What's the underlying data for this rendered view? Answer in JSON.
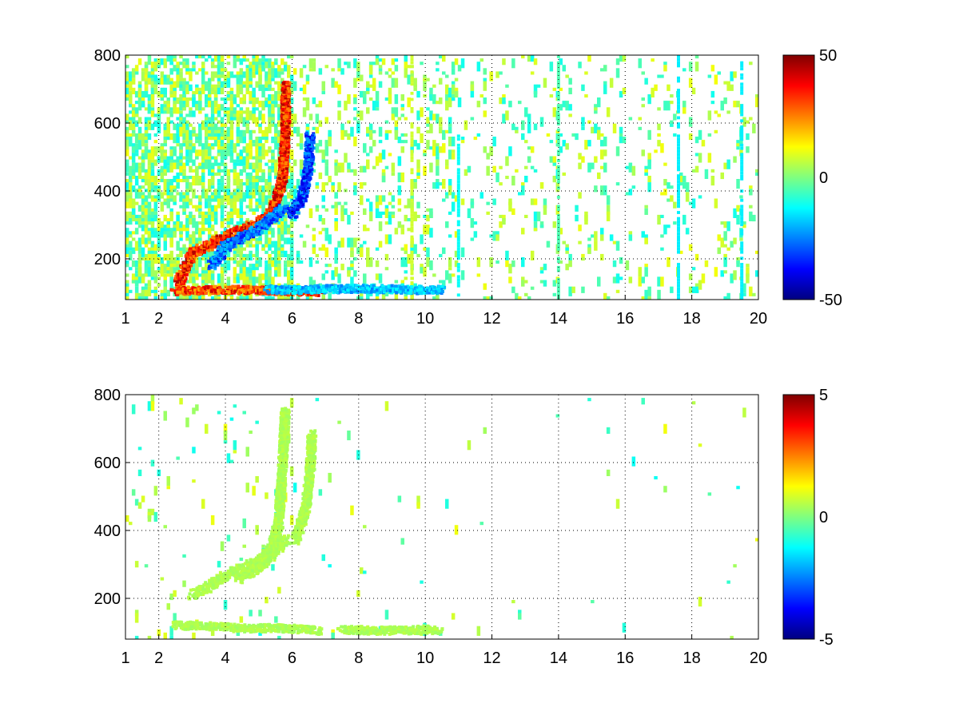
{
  "chart_data": [
    {
      "type": "heatmap",
      "title": "",
      "xlabel": "",
      "ylabel": "",
      "xlim": [
        1,
        20
      ],
      "ylim": [
        80,
        800
      ],
      "x_ticks": [
        "1",
        "2",
        "4",
        "6",
        "8",
        "10",
        "12",
        "14",
        "16",
        "18",
        "20"
      ],
      "y_ticks": [
        "200",
        "400",
        "600",
        "800"
      ],
      "grid": true,
      "colormap": "jet",
      "colorbar": {
        "min": -50,
        "max": 50,
        "ticks": [
          "50",
          "0",
          "-50"
        ]
      },
      "features": [
        {
          "kind": "ridge",
          "value": 45,
          "points": [
            [
              2.6,
              130
            ],
            [
              3.0,
              215
            ],
            [
              3.5,
              240
            ],
            [
              4.0,
              262
            ],
            [
              4.5,
              285
            ],
            [
              5.0,
              305
            ],
            [
              5.4,
              335
            ],
            [
              5.7,
              420
            ],
            [
              5.8,
              560
            ],
            [
              5.82,
              710
            ]
          ]
        },
        {
          "kind": "ridge",
          "value": -35,
          "points": [
            [
              3.6,
              180
            ],
            [
              4.0,
              235
            ],
            [
              4.5,
              265
            ],
            [
              5.0,
              290
            ],
            [
              5.5,
              330
            ],
            [
              5.8,
              350
            ]
          ]
        },
        {
          "kind": "ridge",
          "value": -40,
          "points": [
            [
              6.0,
              330
            ],
            [
              6.3,
              380
            ],
            [
              6.5,
              470
            ],
            [
              6.55,
              560
            ]
          ]
        },
        {
          "kind": "band",
          "value": 42,
          "points": [
            [
              2.5,
              105
            ],
            [
              3.5,
              108
            ],
            [
              4.5,
              108
            ],
            [
              5.5,
              106
            ],
            [
              6.2,
              104
            ],
            [
              6.8,
              102
            ]
          ]
        },
        {
          "kind": "band",
          "value": -25,
          "points": [
            [
              5.3,
              110
            ],
            [
              5.8,
              108
            ],
            [
              8.0,
              112
            ],
            [
              9.2,
              110
            ],
            [
              10.0,
              108
            ],
            [
              10.5,
              108
            ]
          ]
        }
      ],
      "columns": [
        {
          "x": 11.0,
          "value": -12,
          "from": 80,
          "to": 560
        },
        {
          "x": 9.6,
          "value": 8,
          "from": 80,
          "to": 800
        },
        {
          "x": 14.0,
          "value": -5,
          "from": 80,
          "to": 800
        },
        {
          "x": 17.6,
          "value": -14,
          "from": 80,
          "to": 800
        },
        {
          "x": 19.5,
          "value": -14,
          "from": 80,
          "to": 800
        }
      ]
    },
    {
      "type": "heatmap",
      "title": "",
      "xlabel": "",
      "ylabel": "",
      "xlim": [
        1,
        20
      ],
      "ylim": [
        80,
        800
      ],
      "x_ticks": [
        "1",
        "2",
        "4",
        "6",
        "8",
        "10",
        "12",
        "14",
        "16",
        "18",
        "20"
      ],
      "y_ticks": [
        "200",
        "400",
        "600",
        "800"
      ],
      "grid": true,
      "colormap": "jet",
      "colorbar": {
        "min": -5,
        "max": 5,
        "ticks": [
          "5",
          "0",
          "-5"
        ]
      },
      "features": [
        {
          "kind": "ridge",
          "value": 0.6,
          "points": [
            [
              3.0,
              210
            ],
            [
              3.5,
              235
            ],
            [
              4.0,
              265
            ],
            [
              4.5,
              290
            ],
            [
              5.0,
              310
            ],
            [
              5.4,
              345
            ],
            [
              5.6,
              420
            ],
            [
              5.7,
              560
            ],
            [
              5.8,
              750
            ]
          ]
        },
        {
          "kind": "ridge",
          "value": 0.6,
          "points": [
            [
              4.4,
              260
            ],
            [
              5.0,
              290
            ],
            [
              5.5,
              340
            ],
            [
              5.8,
              375
            ]
          ]
        },
        {
          "kind": "ridge",
          "value": 0.6,
          "points": [
            [
              6.1,
              370
            ],
            [
              6.4,
              460
            ],
            [
              6.55,
              580
            ],
            [
              6.6,
              680
            ]
          ]
        },
        {
          "kind": "band",
          "value": 0.6,
          "points": [
            [
              2.5,
              120
            ],
            [
              3.5,
              118
            ],
            [
              4.5,
              112
            ],
            [
              5.5,
              112
            ],
            [
              6.0,
              110
            ],
            [
              6.8,
              105
            ]
          ]
        },
        {
          "kind": "band",
          "value": 0.6,
          "points": [
            [
              7.5,
              108
            ],
            [
              8.5,
              105
            ],
            [
              9.3,
              105
            ],
            [
              10.0,
              108
            ],
            [
              10.4,
              106
            ]
          ]
        }
      ],
      "columns": []
    }
  ]
}
